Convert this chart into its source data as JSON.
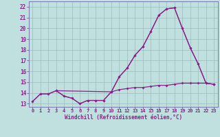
{
  "title": "",
  "xlabel": "Windchill (Refroidissement éolien,°C)",
  "xlim": [
    -0.5,
    23.5
  ],
  "ylim": [
    12.7,
    22.5
  ],
  "yticks": [
    13,
    14,
    15,
    16,
    17,
    18,
    19,
    20,
    21,
    22
  ],
  "xticks": [
    0,
    1,
    2,
    3,
    4,
    5,
    6,
    7,
    8,
    9,
    10,
    11,
    12,
    13,
    14,
    15,
    16,
    17,
    18,
    19,
    20,
    21,
    22,
    23
  ],
  "background_color": "#c0e0e0",
  "grid_color": "#9cbcbc",
  "line_color": "#882288",
  "spine_color": "#7777aa",
  "line1_x": [
    0,
    1,
    2,
    3,
    4,
    5,
    6,
    7,
    8,
    9,
    10,
    11,
    12,
    13,
    14,
    15,
    16,
    17,
    18,
    19,
    20,
    21,
    22,
    23
  ],
  "line1_y": [
    13.2,
    13.9,
    13.9,
    14.2,
    13.7,
    13.5,
    13.0,
    13.3,
    13.3,
    13.3,
    14.1,
    15.5,
    16.3,
    17.5,
    18.3,
    19.7,
    21.2,
    21.8,
    21.9,
    20.0,
    18.2,
    16.7,
    14.9,
    14.8
  ],
  "line2_x": [
    0,
    1,
    2,
    3,
    4,
    5,
    6,
    7,
    8,
    9,
    10,
    11,
    12,
    13,
    14,
    15,
    16,
    17,
    18,
    19,
    20,
    21,
    22,
    23
  ],
  "line2_y": [
    13.2,
    13.9,
    13.9,
    14.2,
    13.7,
    13.5,
    13.0,
    13.3,
    13.3,
    13.3,
    14.1,
    14.3,
    14.4,
    14.5,
    14.5,
    14.6,
    14.7,
    14.7,
    14.8,
    14.9,
    14.9,
    14.9,
    14.9,
    14.8
  ],
  "line3_x": [
    3,
    10,
    11,
    12,
    13,
    14,
    15,
    16,
    17,
    18,
    19,
    20,
    21,
    22,
    23
  ],
  "line3_y": [
    14.2,
    14.1,
    15.5,
    16.3,
    17.5,
    18.3,
    19.7,
    21.2,
    21.8,
    21.9,
    20.0,
    18.2,
    16.7,
    14.9,
    14.8
  ]
}
